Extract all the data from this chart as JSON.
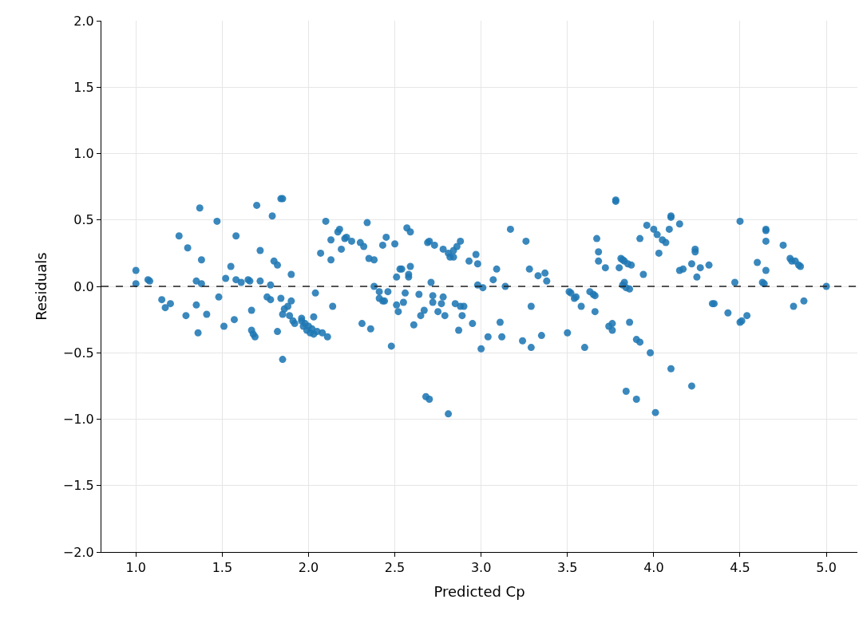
{
  "chart_data": {
    "type": "scatter",
    "xlabel": "Predicted Cp",
    "ylabel": "Residuals",
    "xlim": [
      0.8,
      5.18
    ],
    "xticks": [
      {
        "value": 1,
        "label": "1.0"
      },
      {
        "value": 1.5,
        "label": "1.5"
      },
      {
        "value": 2,
        "label": "2.0"
      },
      {
        "value": 2.5,
        "label": "2.5"
      },
      {
        "value": 3,
        "label": "3.0"
      },
      {
        "value": 3.5,
        "label": "3.5"
      },
      {
        "value": 4,
        "label": "4.0"
      },
      {
        "value": 4.5,
        "label": "4.5"
      },
      {
        "value": 5,
        "label": "5.0"
      }
    ],
    "ylim": [
      -2,
      2
    ],
    "yticks": [
      {
        "value": -2,
        "label": "−2.0"
      },
      {
        "value": -1.5,
        "label": "−1.5"
      },
      {
        "value": -1,
        "label": "−1.0"
      },
      {
        "value": -0.5,
        "label": "−0.5"
      },
      {
        "value": 0,
        "label": "0.0"
      },
      {
        "value": 0.5,
        "label": "0.5"
      },
      {
        "value": 1,
        "label": "1.0"
      },
      {
        "value": 1.5,
        "label": "1.5"
      },
      {
        "value": 2,
        "label": "2.0"
      }
    ],
    "grid": true,
    "marker": "circle",
    "ref_lines": [
      {
        "axis": "y",
        "value": 0,
        "color": "#222222",
        "line_style": "dashed"
      }
    ],
    "series": [
      {
        "color": "#1f77b4",
        "x": [
          1.0,
          1.0,
          1.07,
          1.08,
          1.15,
          1.17,
          1.2,
          1.25,
          1.29,
          1.3,
          1.35,
          1.35,
          1.36,
          1.37,
          1.38,
          1.38,
          1.41,
          1.47,
          1.48,
          1.51,
          1.52,
          1.55,
          1.57,
          1.58,
          1.58,
          1.61,
          1.65,
          1.66,
          1.67,
          1.67,
          1.68,
          1.69,
          1.7,
          1.72,
          1.72,
          1.76,
          1.78,
          1.78,
          1.79,
          1.8,
          1.82,
          1.82,
          1.84,
          1.85,
          1.84,
          1.85,
          1.85,
          1.86,
          1.88,
          1.89,
          1.9,
          1.9,
          1.91,
          1.92,
          1.96,
          1.96,
          1.97,
          1.98,
          1.99,
          2.0,
          2.01,
          2.02,
          2.03,
          2.03,
          2.04,
          2.05,
          2.07,
          2.08,
          2.1,
          2.11,
          2.13,
          2.13,
          2.14,
          2.17,
          2.18,
          2.19,
          2.21,
          2.22,
          2.25,
          2.3,
          2.31,
          2.32,
          2.34,
          2.35,
          2.36,
          2.38,
          2.38,
          2.41,
          2.41,
          2.43,
          2.43,
          2.44,
          2.45,
          2.46,
          2.48,
          2.5,
          2.51,
          2.51,
          2.52,
          2.53,
          2.54,
          2.55,
          2.56,
          2.57,
          2.58,
          2.58,
          2.59,
          2.59,
          2.61,
          2.64,
          2.65,
          2.67,
          2.68,
          2.69,
          2.7,
          2.7,
          2.71,
          2.72,
          2.72,
          2.73,
          2.75,
          2.77,
          2.78,
          2.78,
          2.79,
          2.81,
          2.81,
          2.82,
          2.84,
          2.84,
          2.85,
          2.86,
          2.87,
          2.88,
          2.88,
          2.89,
          2.9,
          2.93,
          2.95,
          2.97,
          2.98,
          2.98,
          3.0,
          3.01,
          3.04,
          3.07,
          3.09,
          3.11,
          3.12,
          3.14,
          3.17,
          3.24,
          3.26,
          3.28,
          3.29,
          3.29,
          3.33,
          3.35,
          3.37,
          3.38,
          3.5,
          3.51,
          3.52,
          3.54,
          3.55,
          3.58,
          3.6,
          3.63,
          3.65,
          3.66,
          3.66,
          3.67,
          3.68,
          3.68,
          3.72,
          3.74,
          3.76,
          3.76,
          3.78,
          3.78,
          3.8,
          3.81,
          3.82,
          3.82,
          3.83,
          3.83,
          3.84,
          3.84,
          3.85,
          3.86,
          3.86,
          3.87,
          3.9,
          3.9,
          3.92,
          3.92,
          3.94,
          3.96,
          3.98,
          4.0,
          4.01,
          4.02,
          4.03,
          4.05,
          4.07,
          4.09,
          4.1,
          4.1,
          4.1,
          4.15,
          4.15,
          4.17,
          4.22,
          4.22,
          4.24,
          4.24,
          4.25,
          4.27,
          4.32,
          4.34,
          4.35,
          4.43,
          4.47,
          4.5,
          4.5,
          4.51,
          4.54,
          4.6,
          4.63,
          4.64,
          4.65,
          4.65,
          4.65,
          4.65,
          4.75,
          4.79,
          4.8,
          4.81,
          4.82,
          4.84,
          4.85,
          4.87,
          5.0
        ],
        "values": [
          0.12,
          0.02,
          0.05,
          0.04,
          -0.1,
          -0.16,
          -0.13,
          0.38,
          -0.22,
          0.29,
          0.04,
          -0.14,
          -0.35,
          0.59,
          0.2,
          0.02,
          -0.21,
          0.49,
          -0.08,
          -0.3,
          0.06,
          0.15,
          -0.25,
          0.05,
          0.38,
          0.03,
          0.05,
          0.04,
          -0.33,
          -0.18,
          -0.36,
          -0.38,
          0.61,
          0.04,
          0.27,
          -0.08,
          0.01,
          -0.1,
          0.53,
          0.19,
          -0.34,
          0.16,
          0.66,
          0.66,
          -0.09,
          -0.55,
          -0.21,
          -0.17,
          -0.15,
          -0.22,
          0.09,
          -0.11,
          -0.26,
          -0.28,
          -0.24,
          -0.26,
          -0.3,
          -0.28,
          -0.33,
          -0.3,
          -0.35,
          -0.32,
          -0.23,
          -0.36,
          -0.05,
          -0.34,
          0.25,
          -0.35,
          0.49,
          -0.38,
          0.35,
          0.2,
          -0.15,
          0.41,
          0.43,
          0.28,
          0.36,
          0.37,
          0.34,
          0.33,
          -0.28,
          0.3,
          0.48,
          0.21,
          -0.32,
          0.2,
          0.0,
          -0.04,
          -0.09,
          -0.11,
          0.31,
          -0.11,
          0.37,
          -0.04,
          -0.45,
          0.32,
          0.07,
          -0.14,
          -0.19,
          0.13,
          0.13,
          -0.12,
          -0.05,
          0.44,
          0.09,
          0.07,
          0.15,
          0.41,
          -0.29,
          -0.06,
          -0.22,
          -0.18,
          -0.83,
          0.33,
          0.34,
          -0.85,
          0.03,
          -0.12,
          -0.07,
          0.31,
          -0.19,
          -0.13,
          0.28,
          -0.08,
          -0.22,
          -0.96,
          0.25,
          0.22,
          0.22,
          0.27,
          -0.13,
          0.3,
          -0.33,
          0.34,
          -0.15,
          -0.22,
          -0.15,
          0.19,
          -0.28,
          0.24,
          0.01,
          0.17,
          -0.47,
          -0.01,
          -0.38,
          0.05,
          0.13,
          -0.27,
          -0.38,
          0.0,
          0.43,
          -0.41,
          0.34,
          0.13,
          -0.46,
          -0.15,
          0.08,
          -0.37,
          0.1,
          0.04,
          -0.35,
          -0.04,
          -0.05,
          -0.09,
          -0.08,
          -0.15,
          -0.46,
          -0.04,
          -0.06,
          -0.07,
          -0.19,
          0.36,
          0.26,
          0.19,
          0.14,
          -0.3,
          -0.33,
          -0.28,
          0.65,
          0.64,
          0.14,
          0.21,
          0.01,
          0.2,
          0.03,
          0.19,
          -0.79,
          -0.01,
          0.17,
          -0.27,
          -0.02,
          0.16,
          -0.4,
          -0.85,
          -0.42,
          0.36,
          0.09,
          0.46,
          -0.5,
          0.43,
          -0.95,
          0.39,
          0.25,
          0.35,
          0.33,
          0.43,
          0.52,
          0.53,
          -0.62,
          0.12,
          0.47,
          0.13,
          -0.75,
          0.17,
          0.26,
          0.28,
          0.07,
          0.14,
          0.16,
          -0.13,
          -0.13,
          -0.2,
          0.03,
          0.49,
          -0.27,
          -0.26,
          -0.22,
          0.18,
          0.03,
          0.02,
          0.43,
          0.42,
          0.34,
          0.12,
          0.31,
          0.21,
          0.19,
          -0.15,
          0.19,
          0.16,
          0.15,
          -0.11,
          0.0
        ]
      }
    ]
  }
}
